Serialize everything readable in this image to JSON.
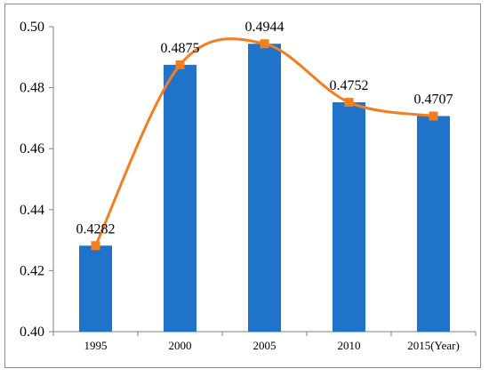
{
  "chart_data": {
    "type": "bar",
    "categories": [
      "1995",
      "2000",
      "2005",
      "2010",
      "2015(Year)"
    ],
    "values": [
      0.4282,
      0.4875,
      0.4944,
      0.4752,
      0.4707
    ],
    "data_labels": [
      "0.4282",
      "0.4875",
      "0.4944",
      "0.4752",
      "0.4707"
    ],
    "line_series": {
      "values": [
        0.4282,
        0.4875,
        0.4944,
        0.4752,
        0.4707
      ],
      "style": "smooth",
      "marker": "square"
    },
    "ylim": [
      0.4,
      0.5
    ],
    "yticks": [
      "0.40",
      "0.42",
      "0.44",
      "0.46",
      "0.48",
      "0.50"
    ],
    "grid": false,
    "legend": "none",
    "colors": {
      "bar": "#1f74c9",
      "line": "#f47d20",
      "marker": "#f47d20",
      "axis": "#7f7f7f"
    }
  }
}
